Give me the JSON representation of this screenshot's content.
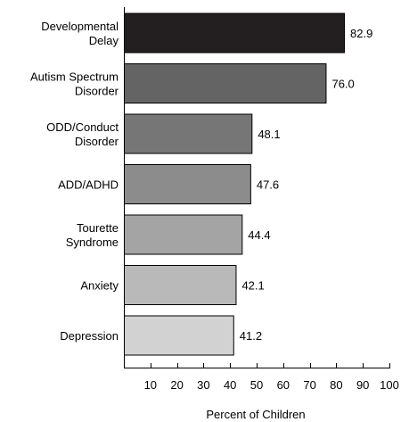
{
  "chart_data": {
    "type": "bar",
    "orientation": "horizontal",
    "categories": [
      [
        "Developmental",
        "Delay"
      ],
      [
        "Autism Spectrum",
        "Disorder"
      ],
      [
        "ODD/Conduct",
        "Disorder"
      ],
      [
        "ADD/ADHD"
      ],
      [
        "Tourette",
        "Syndrome"
      ],
      [
        "Anxiety"
      ],
      [
        "Depression"
      ]
    ],
    "values": [
      82.9,
      76.0,
      48.1,
      47.6,
      44.4,
      42.1,
      41.2
    ],
    "value_labels": [
      "82.9",
      "76.0",
      "48.1",
      "47.6",
      "44.4",
      "42.1",
      "41.2"
    ],
    "bar_colors": [
      "#231f20",
      "#646464",
      "#767676",
      "#8c8c8c",
      "#a4a4a4",
      "#b9b9b9",
      "#d2d2d2"
    ],
    "xlabel": "Percent of Children",
    "ylabel": "",
    "title": "",
    "xlim": [
      0,
      100
    ],
    "xticks": [
      10,
      20,
      30,
      40,
      50,
      60,
      70,
      80,
      90,
      100
    ],
    "grid": false,
    "legend": "none"
  }
}
